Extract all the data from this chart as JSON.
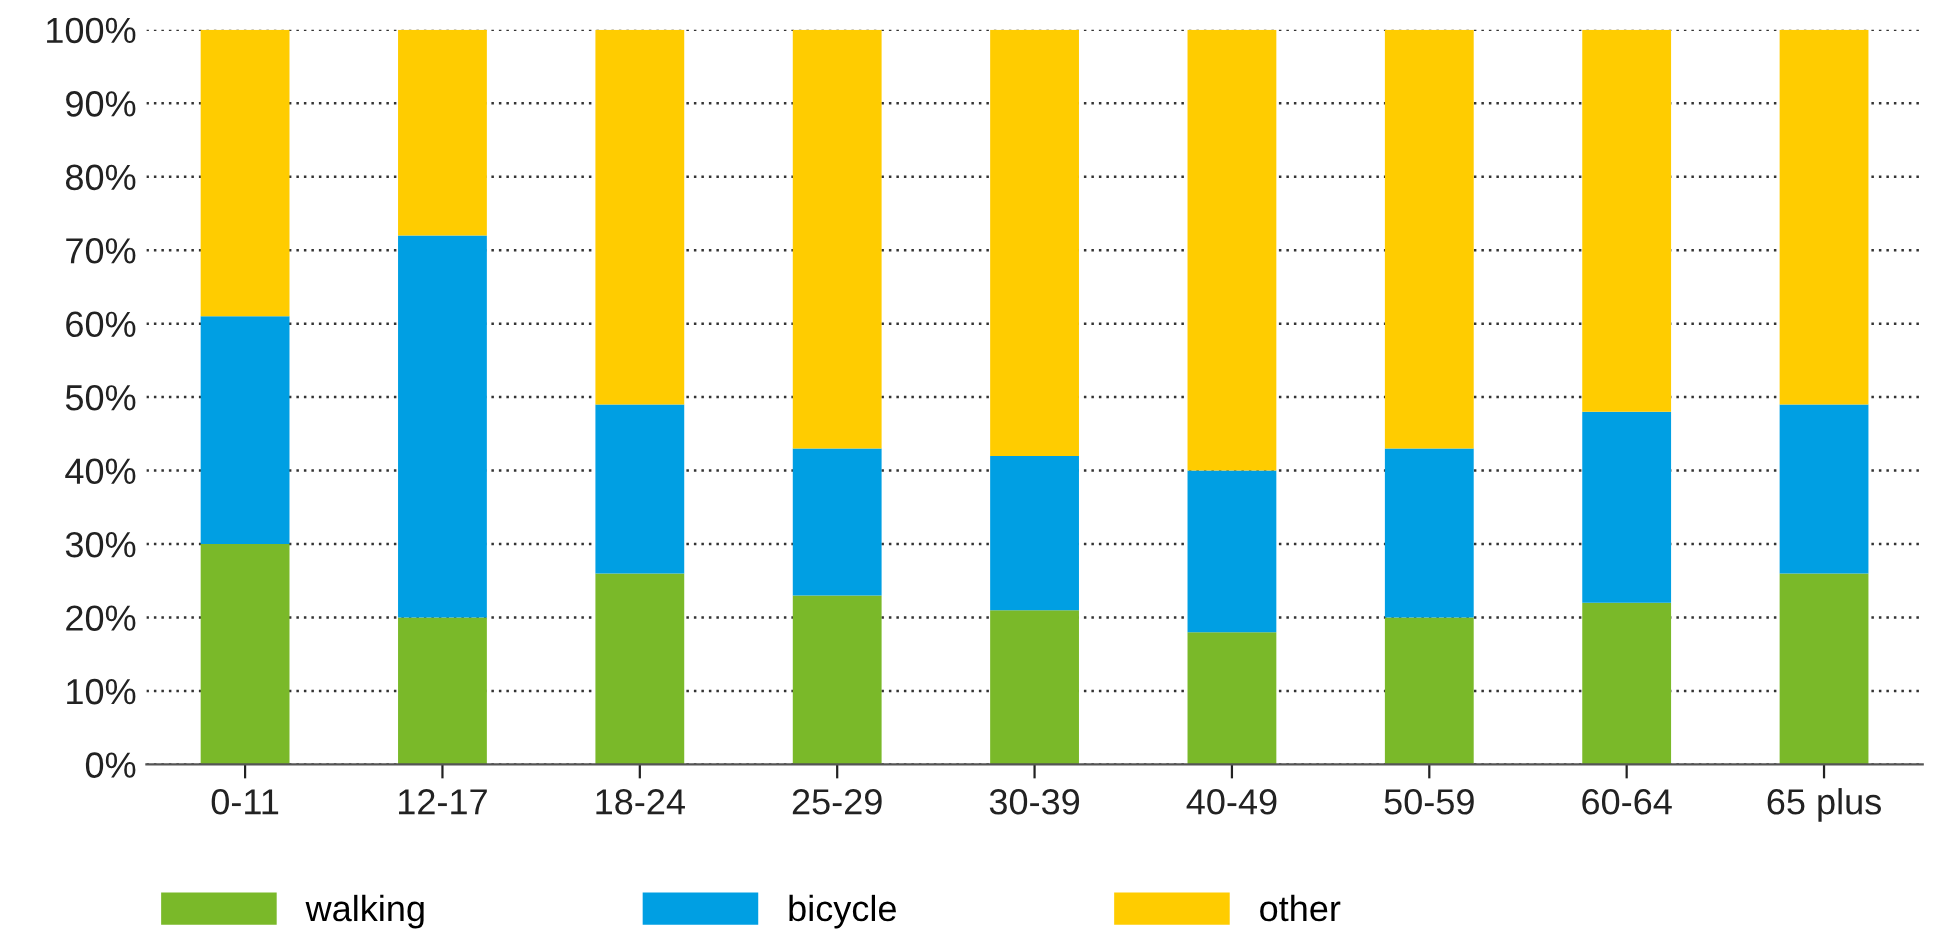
{
  "chart_data": {
    "type": "bar",
    "stacked": true,
    "categories": [
      "0-11",
      "12-17",
      "18-24",
      "25-29",
      "30-39",
      "40-49",
      "50-59",
      "60-64",
      "65 plus"
    ],
    "series": [
      {
        "name": "walking",
        "color": "#7ab929",
        "values": [
          30,
          20,
          26,
          23,
          21,
          18,
          20,
          22,
          26
        ]
      },
      {
        "name": "bicycle",
        "color": "#009fe3",
        "values": [
          31,
          52,
          23,
          20,
          21,
          22,
          23,
          26,
          23
        ]
      },
      {
        "name": "other",
        "color": "#ffcc00",
        "values": [
          39,
          28,
          51,
          57,
          58,
          60,
          57,
          52,
          51
        ]
      }
    ],
    "ylim": [
      0,
      100
    ],
    "yticks": [
      {
        "value": 0,
        "label": "0%"
      },
      {
        "value": 10,
        "label": "10%"
      },
      {
        "value": 20,
        "label": "20%"
      },
      {
        "value": 30,
        "label": "30%"
      },
      {
        "value": 40,
        "label": "40%"
      },
      {
        "value": 50,
        "label": "50%"
      },
      {
        "value": 60,
        "label": "60%"
      },
      {
        "value": 70,
        "label": "70%"
      },
      {
        "value": 80,
        "label": "80%"
      },
      {
        "value": 90,
        "label": "90%"
      },
      {
        "value": 100,
        "label": "100%"
      }
    ],
    "grid": "y",
    "legend": "bottom left"
  }
}
